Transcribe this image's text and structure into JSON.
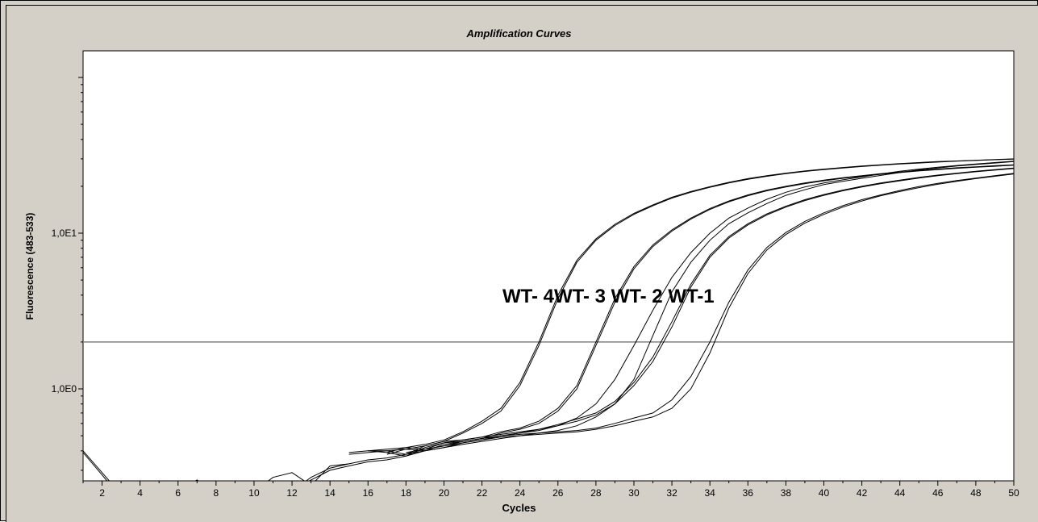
{
  "chart_data": {
    "type": "line",
    "title": "Amplification Curves",
    "xlabel": "Cycles",
    "ylabel": "Fluorescence (483-533)",
    "xlim": [
      1,
      50
    ],
    "ylim": [
      0.25,
      100
    ],
    "y_scale": "log",
    "grid": false,
    "x_ticks": [
      2,
      4,
      6,
      8,
      10,
      12,
      14,
      16,
      18,
      20,
      22,
      24,
      26,
      28,
      30,
      32,
      34,
      36,
      38,
      40,
      42,
      44,
      46,
      48,
      50
    ],
    "y_tick_labels": [
      {
        "value": 10,
        "label": "1,0E1"
      },
      {
        "value": 1,
        "label": "1,0E0"
      }
    ],
    "threshold": 2.0,
    "annotation": "WT- 4WT- 3 WT- 2 WT-1",
    "line_color": "#000000",
    "series": [
      {
        "x": [
          1,
          2,
          3
        ],
        "y": [
          0.4,
          0.29,
          0.21
        ]
      },
      {
        "x": [
          1,
          2,
          3
        ],
        "y": [
          0.39,
          0.28,
          0.2
        ]
      },
      {
        "x": [
          6,
          7,
          8
        ],
        "y": [
          0.22,
          0.26,
          0.21
        ]
      },
      {
        "x": [
          8,
          9,
          10
        ],
        "y": [
          0.22,
          0.24,
          0.2
        ]
      },
      {
        "x": [
          10,
          11,
          12,
          13,
          14,
          15
        ],
        "y": [
          0.22,
          0.27,
          0.29,
          0.24,
          0.32,
          0.33
        ]
      },
      {
        "x": [
          12,
          13,
          14,
          15,
          16,
          17,
          18,
          19,
          20,
          21,
          22,
          23,
          24,
          25,
          26,
          27,
          28,
          29,
          30,
          31,
          32,
          33,
          34,
          35,
          36,
          37,
          38,
          39,
          40,
          41,
          42,
          43,
          44,
          45,
          46,
          47,
          48,
          49,
          50
        ],
        "y": [
          0.22,
          0.26,
          0.3,
          0.32,
          0.34,
          0.35,
          0.37,
          0.4,
          0.42,
          0.44,
          0.46,
          0.48,
          0.5,
          0.52,
          0.54,
          0.58,
          0.66,
          0.8,
          1.15,
          2.2,
          4.2,
          6.5,
          9.0,
          11.5,
          13.5,
          15.5,
          17.5,
          19,
          20.5,
          21.5,
          22.5,
          23.5,
          24.5,
          25.5,
          26.2,
          27,
          27.6,
          28.2,
          28.8
        ]
      },
      {
        "x": [
          12,
          13,
          14,
          15,
          16,
          17,
          18,
          19,
          20,
          21,
          22,
          23,
          24,
          25,
          26,
          27,
          28,
          29,
          30,
          31,
          32,
          33,
          34,
          35,
          36,
          37,
          38,
          39,
          40,
          41,
          42,
          43,
          44,
          45,
          46,
          47,
          48,
          49,
          50
        ],
        "y": [
          0.22,
          0.27,
          0.31,
          0.33,
          0.35,
          0.36,
          0.38,
          0.41,
          0.43,
          0.45,
          0.47,
          0.5,
          0.52,
          0.55,
          0.58,
          0.65,
          0.8,
          1.15,
          1.9,
          3.2,
          5.2,
          7.5,
          10.0,
          12.5,
          14.5,
          16.5,
          18.3,
          19.8,
          21,
          22,
          23,
          24,
          25,
          25.8,
          26.5,
          27.2,
          27.8,
          28.4,
          29
        ]
      },
      {
        "x": [
          15,
          16,
          17,
          18,
          19,
          20,
          21,
          22,
          23,
          24,
          25,
          26,
          27,
          28,
          29,
          30,
          31,
          32,
          33,
          34,
          35,
          36,
          37,
          38,
          39,
          40,
          41,
          42,
          43,
          44,
          45,
          46,
          47,
          48,
          49,
          50
        ],
        "y": [
          0.38,
          0.39,
          0.4,
          0.41,
          0.43,
          0.46,
          0.52,
          0.6,
          0.72,
          1.05,
          1.9,
          3.8,
          6.5,
          9.0,
          11.2,
          13.2,
          15,
          16.8,
          18.3,
          19.7,
          21,
          22.2,
          23.2,
          24.1,
          24.9,
          25.6,
          26.2,
          26.8,
          27.3,
          27.8,
          28.2,
          28.6,
          29,
          29.3,
          29.6,
          29.9
        ]
      },
      {
        "x": [
          15,
          16,
          17,
          18,
          19,
          20,
          21,
          22,
          23,
          24,
          25,
          26,
          27,
          28,
          29,
          30,
          31,
          32,
          33,
          34,
          35,
          36,
          37,
          38,
          39,
          40,
          41,
          42,
          43,
          44,
          45,
          46,
          47,
          48,
          49,
          50
        ],
        "y": [
          0.39,
          0.4,
          0.41,
          0.42,
          0.44,
          0.47,
          0.53,
          0.62,
          0.75,
          1.1,
          2.0,
          4.0,
          6.7,
          9.2,
          11.4,
          13.4,
          15.2,
          17,
          18.5,
          19.9,
          21.2,
          22.4,
          23.4,
          24.3,
          25.1,
          25.8,
          26.4,
          27,
          27.5,
          28,
          28.4,
          28.8,
          29.1,
          29.4,
          29.7,
          30
        ]
      },
      {
        "x": [
          16,
          17,
          18,
          19,
          20,
          21,
          22,
          23,
          24,
          25,
          26,
          27,
          28,
          29,
          30,
          31,
          32,
          33,
          34,
          35,
          36,
          37,
          38,
          39,
          40,
          41,
          42,
          43,
          44,
          45,
          46,
          47,
          48,
          49,
          50
        ],
        "y": [
          0.4,
          0.39,
          0.37,
          0.42,
          0.45,
          0.46,
          0.48,
          0.52,
          0.55,
          0.6,
          0.72,
          1.0,
          1.9,
          3.6,
          5.9,
          8.2,
          10.3,
          12.3,
          14.2,
          15.9,
          17.4,
          18.7,
          19.8,
          20.8,
          21.7,
          22.5,
          23.2,
          23.9,
          24.5,
          25.1,
          25.6,
          26.1,
          26.5,
          26.9,
          27.3
        ]
      },
      {
        "x": [
          16,
          17,
          18,
          19,
          20,
          21,
          22,
          23,
          24,
          25,
          26,
          27,
          28,
          29,
          30,
          31,
          32,
          33,
          34,
          35,
          36,
          37,
          38,
          39,
          40,
          41,
          42,
          43,
          44,
          45,
          46,
          47,
          48,
          49,
          50
        ],
        "y": [
          0.4,
          0.4,
          0.38,
          0.43,
          0.46,
          0.47,
          0.49,
          0.53,
          0.56,
          0.62,
          0.75,
          1.05,
          2.0,
          3.8,
          6.1,
          8.4,
          10.5,
          12.5,
          14.4,
          16.1,
          17.6,
          18.9,
          20,
          21,
          21.9,
          22.7,
          23.4,
          24.1,
          24.7,
          25.3,
          25.8,
          26.3,
          26.7,
          27.1,
          27.5
        ]
      },
      {
        "x": [
          17,
          18,
          19,
          20,
          21,
          22,
          23,
          24,
          25,
          26,
          27,
          28,
          29,
          30,
          31,
          32,
          33,
          34,
          35,
          36,
          37,
          38,
          39,
          40,
          41,
          42,
          43,
          44,
          45,
          46,
          47,
          48,
          49,
          50
        ],
        "y": [
          0.38,
          0.41,
          0.4,
          0.44,
          0.46,
          0.48,
          0.5,
          0.52,
          0.54,
          0.58,
          0.62,
          0.68,
          0.8,
          1.05,
          1.5,
          2.5,
          4.5,
          7.0,
          9.3,
          11.3,
          13.1,
          14.7,
          16.2,
          17.5,
          18.7,
          19.8,
          20.8,
          21.7,
          22.6,
          23.4,
          24.1,
          24.8,
          25.4,
          26
        ]
      },
      {
        "x": [
          17,
          18,
          19,
          20,
          21,
          22,
          23,
          24,
          25,
          26,
          27,
          28,
          29,
          30,
          31,
          32,
          33,
          34,
          35,
          36,
          37,
          38,
          39,
          40,
          41,
          42,
          43,
          44,
          45,
          46,
          47,
          48,
          49,
          50
        ],
        "y": [
          0.39,
          0.42,
          0.41,
          0.45,
          0.47,
          0.49,
          0.51,
          0.53,
          0.55,
          0.59,
          0.64,
          0.7,
          0.83,
          1.1,
          1.6,
          2.7,
          4.7,
          7.2,
          9.5,
          11.5,
          13.3,
          14.9,
          16.4,
          17.7,
          18.9,
          20,
          21,
          21.9,
          22.8,
          23.6,
          24.3,
          25,
          25.6,
          26.2
        ]
      },
      {
        "x": [
          18,
          19,
          20,
          21,
          22,
          23,
          24,
          25,
          26,
          27,
          28,
          29,
          30,
          31,
          32,
          33,
          34,
          35,
          36,
          37,
          38,
          39,
          40,
          41,
          42,
          43,
          44,
          45,
          46,
          47,
          48,
          49,
          50
        ],
        "y": [
          0.38,
          0.4,
          0.42,
          0.45,
          0.47,
          0.49,
          0.5,
          0.51,
          0.52,
          0.53,
          0.55,
          0.58,
          0.62,
          0.66,
          0.75,
          1.0,
          1.7,
          3.3,
          5.5,
          7.8,
          9.8,
          11.6,
          13.2,
          14.7,
          16.1,
          17.4,
          18.5,
          19.6,
          20.6,
          21.5,
          22.4,
          23.2,
          24
        ]
      },
      {
        "x": [
          18,
          19,
          20,
          21,
          22,
          23,
          24,
          25,
          26,
          27,
          28,
          29,
          30,
          31,
          32,
          33,
          34,
          35,
          36,
          37,
          38,
          39,
          40,
          41,
          42,
          43,
          44,
          45,
          46,
          47,
          48,
          49,
          50
        ],
        "y": [
          0.39,
          0.41,
          0.43,
          0.46,
          0.48,
          0.5,
          0.51,
          0.52,
          0.53,
          0.54,
          0.56,
          0.6,
          0.65,
          0.7,
          0.85,
          1.2,
          2.0,
          3.6,
          5.8,
          8.1,
          10.1,
          11.9,
          13.5,
          15,
          16.4,
          17.6,
          18.8,
          19.9,
          20.9,
          21.8,
          22.6,
          23.4,
          24.2
        ]
      }
    ]
  }
}
